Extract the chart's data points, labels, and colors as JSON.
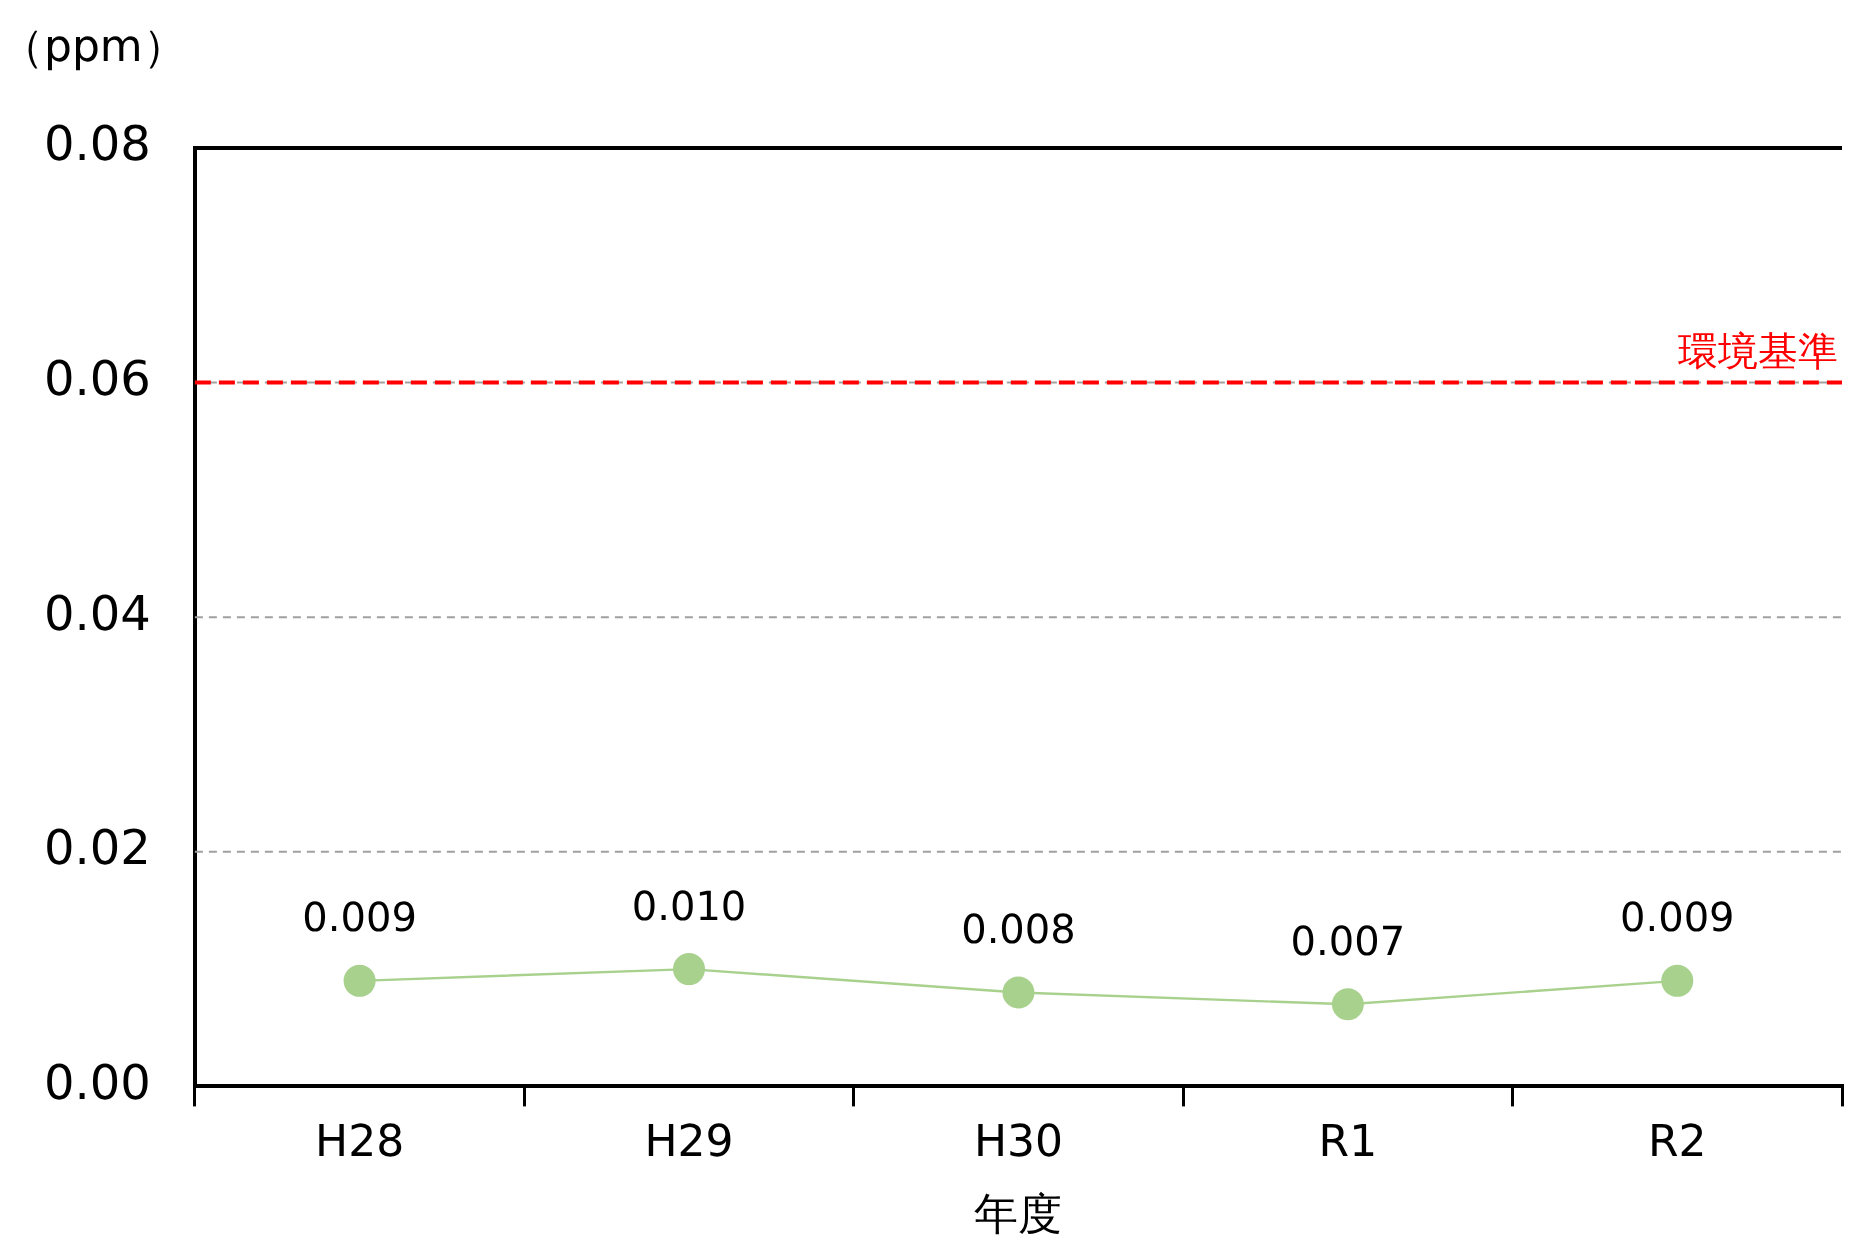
{
  "chart_data": {
    "type": "line",
    "ylabel": "（ppm）",
    "xlabel": "年度",
    "categories": [
      "H28",
      "H29",
      "H30",
      "R1",
      "R2"
    ],
    "series": [
      {
        "color": "#a9d18e",
        "values": [
          0.009,
          0.01,
          0.008,
          0.007,
          0.009
        ],
        "value_labels": [
          "0.009",
          "0.010",
          "0.008",
          "0.007",
          "0.009"
        ]
      }
    ],
    "ylim": [
      0,
      0.08
    ],
    "yticks": [
      {
        "value": 0,
        "label": "0.00"
      },
      {
        "value": 0.02,
        "label": "0.02"
      },
      {
        "value": 0.04,
        "label": "0.04"
      },
      {
        "value": 0.06,
        "label": "0.06"
      },
      {
        "value": 0.08,
        "label": "0.08"
      }
    ],
    "ref_lines": [
      {
        "axis": "y",
        "value": 0.06,
        "label": "環境基準",
        "color": "#ff0000",
        "line_style": "dashed"
      }
    ],
    "grid": "y",
    "legend": false,
    "marker": "circle",
    "line_style": "solid"
  }
}
